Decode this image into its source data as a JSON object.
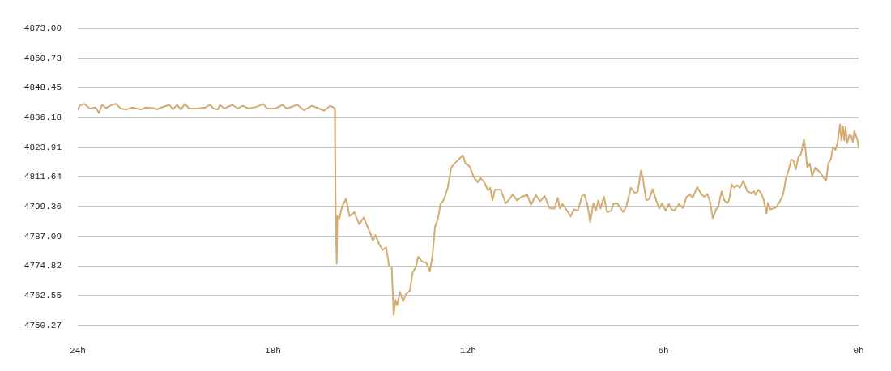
{
  "chart_data": {
    "type": "line",
    "color": "#d4ac72",
    "grid": "y",
    "xlim": [
      24,
      0
    ],
    "xticks": [
      {
        "value": 24,
        "label": "24h"
      },
      {
        "value": 18,
        "label": "18h"
      },
      {
        "value": 12,
        "label": "12h"
      },
      {
        "value": 6,
        "label": "6h"
      },
      {
        "value": 0,
        "label": "0h"
      }
    ],
    "ylim": [
      4750.27,
      4873
    ],
    "yticks": [
      4750.27,
      4762.55,
      4774.82,
      4787.09,
      4799.36,
      4811.64,
      4823.91,
      4836.18,
      4848.45,
      4860.73,
      {
        "value": 4873,
        "label": "4873.00"
      }
    ],
    "x": [
      24.0,
      23.93,
      23.8,
      23.63,
      23.45,
      23.35,
      23.25,
      23.13,
      22.95,
      22.83,
      22.68,
      22.5,
      22.33,
      22.05,
      21.93,
      21.68,
      21.58,
      21.43,
      21.18,
      21.08,
      20.95,
      20.83,
      20.7,
      20.58,
      20.33,
      20.08,
      19.93,
      19.83,
      19.7,
      19.63,
      19.5,
      19.25,
      19.08,
      18.93,
      18.75,
      18.5,
      18.3,
      18.18,
      17.93,
      17.7,
      17.58,
      17.25,
      17.05,
      16.8,
      16.58,
      16.43,
      16.25,
      16.13,
      16.1,
      16.09,
      16.07,
      16.04,
      16.02,
      15.96,
      15.88,
      15.75,
      15.65,
      15.5,
      15.35,
      15.21,
      15.02,
      14.93,
      14.85,
      14.75,
      14.63,
      14.52,
      14.43,
      14.35,
      14.29,
      14.23,
      14.18,
      14.1,
      14.0,
      13.92,
      13.79,
      13.71,
      13.6,
      13.54,
      13.42,
      13.29,
      13.18,
      13.1,
      13.02,
      12.93,
      12.85,
      12.75,
      12.63,
      12.52,
      12.42,
      12.29,
      12.17,
      12.08,
      11.96,
      11.83,
      11.71,
      11.63,
      11.5,
      11.39,
      11.32,
      11.25,
      11.18,
      11.0,
      10.85,
      10.75,
      10.63,
      10.5,
      10.35,
      10.18,
      10.07,
      9.92,
      9.79,
      9.65,
      9.5,
      9.35,
      9.25,
      9.18,
      9.1,
      9.0,
      8.85,
      8.75,
      8.63,
      8.5,
      8.42,
      8.33,
      8.25,
      8.15,
      8.08,
      8.0,
      7.93,
      7.83,
      7.73,
      7.6,
      7.54,
      7.42,
      7.23,
      7.13,
      7.0,
      6.88,
      6.79,
      6.69,
      6.63,
      6.53,
      6.44,
      6.33,
      6.23,
      6.13,
      6.04,
      5.93,
      5.83,
      5.75,
      5.67,
      5.52,
      5.4,
      5.29,
      5.18,
      5.1,
      4.96,
      4.83,
      4.73,
      4.65,
      4.57,
      4.48,
      4.38,
      4.32,
      4.21,
      4.13,
      4.04,
      3.98,
      3.9,
      3.82,
      3.73,
      3.65,
      3.54,
      3.42,
      3.29,
      3.21,
      3.17,
      3.08,
      3.0,
      2.92,
      2.83,
      2.79,
      2.71,
      2.54,
      2.42,
      2.32,
      2.23,
      2.15,
      2.07,
      2.0,
      1.93,
      1.85,
      1.77,
      1.68,
      1.63,
      1.58,
      1.5,
      1.43,
      1.33,
      1.25,
      1.17,
      1.07,
      1.0,
      0.93,
      0.85,
      0.79,
      0.71,
      0.65,
      0.57,
      0.53,
      0.48,
      0.44,
      0.4,
      0.35,
      0.29,
      0.23,
      0.18,
      0.13,
      0.04,
      0
    ],
    "values": [
      4839.5,
      4841.2,
      4841.8,
      4839.9,
      4840.3,
      4838.1,
      4841.4,
      4840.1,
      4841.4,
      4841.8,
      4839.9,
      4839.5,
      4840.3,
      4839.5,
      4840.3,
      4840.1,
      4839.5,
      4840.3,
      4841.4,
      4839.5,
      4841.4,
      4839.5,
      4841.8,
      4839.9,
      4839.9,
      4840.3,
      4841.4,
      4839.9,
      4839.5,
      4841.4,
      4839.9,
      4841.4,
      4839.9,
      4841.0,
      4839.9,
      4840.6,
      4841.8,
      4839.9,
      4839.9,
      4841.4,
      4839.9,
      4841.4,
      4839.2,
      4841.0,
      4839.9,
      4839.0,
      4841.0,
      4840.3,
      4839.9,
      4823.9,
      4792.1,
      4775.9,
      4795.5,
      4794.3,
      4799.4,
      4802.7,
      4795.5,
      4797.1,
      4792.1,
      4794.9,
      4788.8,
      4785.4,
      4787.7,
      4784.3,
      4781.5,
      4782.6,
      4774.8,
      4774.3,
      4754.7,
      4760.9,
      4758.6,
      4764.2,
      4760.3,
      4763.1,
      4764.8,
      4772.0,
      4774.8,
      4778.7,
      4776.7,
      4776.3,
      4772.6,
      4778.7,
      4791.0,
      4794.3,
      4800.5,
      4802.1,
      4807.2,
      4815.5,
      4817.2,
      4818.9,
      4820.6,
      4817.2,
      4816.1,
      4811.7,
      4809.4,
      4811.3,
      4809.4,
      4806.1,
      4807.2,
      4801.9,
      4806.4,
      4806.4,
      4800.8,
      4802.1,
      4804.4,
      4801.9,
      4803.5,
      4804.2,
      4800.1,
      4804.2,
      4801.6,
      4803.8,
      4798.8,
      4798.6,
      4803.0,
      4798.6,
      4800.5,
      4798.6,
      4795.3,
      4798.3,
      4797.7,
      4803.8,
      4804.2,
      4799.9,
      4793.0,
      4800.8,
      4797.7,
      4801.9,
      4798.6,
      4803.5,
      4797.1,
      4797.7,
      4800.5,
      4800.8,
      4797.1,
      4799.9,
      4807.2,
      4805.0,
      4805.5,
      4814.2,
      4811.1,
      4802.1,
      4802.4,
      4806.6,
      4802.4,
      4798.6,
      4800.8,
      4797.7,
      4800.5,
      4798.3,
      4797.7,
      4800.5,
      4798.8,
      4803.3,
      4804.4,
      4803.0,
      4807.5,
      4804.4,
      4803.5,
      4804.6,
      4801.6,
      4794.6,
      4798.3,
      4799.0,
      4805.7,
      4802.1,
      4800.8,
      4802.1,
      4808.6,
      4807.2,
      4808.3,
      4807.2,
      4810.0,
      4805.7,
      4805.0,
      4805.7,
      4804.2,
      4806.4,
      4805.0,
      4802.4,
      4796.6,
      4801.0,
      4798.3,
      4799.0,
      4801.6,
      4804.4,
      4811.3,
      4814.4,
      4818.9,
      4818.3,
      4814.7,
      4820.0,
      4821.1,
      4827.2,
      4822.8,
      4815.5,
      4817.2,
      4812.0,
      4815.5,
      4814.4,
      4813.3,
      4811.3,
      4810.0,
      4817.2,
      4819.1,
      4823.9,
      4822.8,
      4825.6,
      4833.4,
      4826.7,
      4832.5,
      4826.7,
      4832.3,
      4825.6,
      4828.9,
      4828.7,
      4826.1,
      4830.6,
      4827.2,
      4823.9
    ]
  }
}
